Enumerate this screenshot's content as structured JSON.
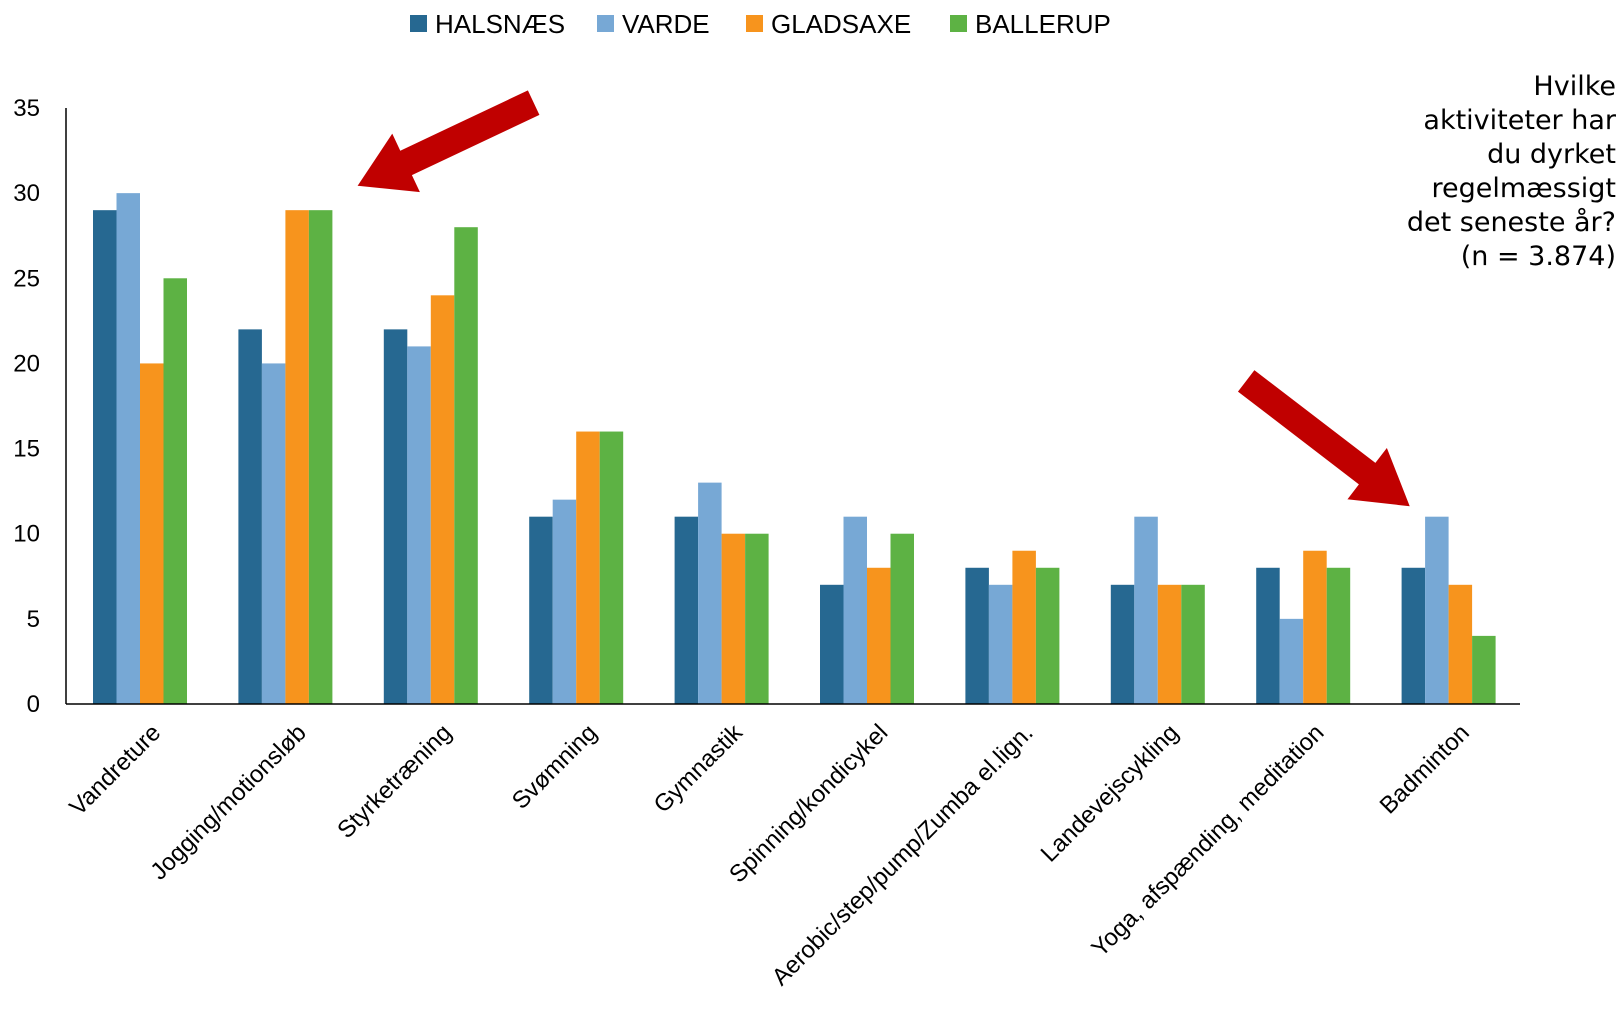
{
  "question": {
    "lines": [
      "Hvilke",
      "aktiviteter har",
      "du dyrket",
      "regelmæssigt",
      "det seneste år?",
      "(n = 3.874)"
    ]
  },
  "arrows": [
    {
      "name": "arrow-jogging",
      "color": "#c00000",
      "points_to": "Jogging/motionsløb"
    },
    {
      "name": "arrow-badminton",
      "color": "#c00000",
      "points_to": "Badminton"
    }
  ],
  "chart_data": {
    "type": "bar",
    "title": "",
    "xlabel": "",
    "ylabel": "",
    "ylim": [
      0,
      35
    ],
    "yticks": [
      0,
      5,
      10,
      15,
      20,
      25,
      30,
      35
    ],
    "grid": false,
    "legend_position": "top-center",
    "categories": [
      "Vandreture",
      "Jogging/motionsløb",
      "Styrketræning",
      "Svømning",
      "Gymnastik",
      "Spinning/kondicykel",
      "Aerobic/step/pump/Zumba el.lign.",
      "Landevejscykling",
      "Yoga, afspænding, meditation",
      "Badminton"
    ],
    "series": [
      {
        "name": "HALSNÆS",
        "color": "#266891",
        "values": [
          29,
          22,
          22,
          11,
          11,
          7,
          8,
          7,
          8,
          8
        ]
      },
      {
        "name": "VARDE",
        "color": "#77a8d5",
        "values": [
          30,
          20,
          21,
          12,
          13,
          11,
          7,
          11,
          5,
          11
        ]
      },
      {
        "name": "GLADSAXE",
        "color": "#f7941d",
        "values": [
          20,
          29,
          24,
          16,
          10,
          8,
          9,
          7,
          9,
          7
        ]
      },
      {
        "name": "BALLERUP",
        "color": "#5db244",
        "values": [
          25,
          29,
          28,
          16,
          10,
          10,
          8,
          7,
          8,
          4
        ]
      }
    ]
  }
}
